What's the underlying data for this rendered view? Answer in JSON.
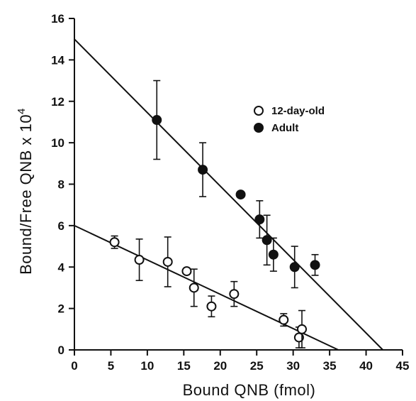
{
  "chart_data": {
    "type": "scatter",
    "xlabel": "Bound QNB (fmol)",
    "ylabel": "Bound/Free QNB x 10",
    "ylabel_superscript": "4",
    "xlim": [
      0,
      45
    ],
    "ylim": [
      0,
      16
    ],
    "x_ticks": [
      "0",
      "5",
      "10",
      "15",
      "20",
      "25",
      "30",
      "35",
      "40",
      "45"
    ],
    "y_ticks": [
      "0",
      "2",
      "4",
      "6",
      "8",
      "10",
      "12",
      "14",
      "16"
    ],
    "grid": false,
    "legend_position": "top-right",
    "series": [
      {
        "name": "12-day-old",
        "marker": "open-circle",
        "points": [
          {
            "x": 5.5,
            "y": 5.2,
            "err": 0.3
          },
          {
            "x": 8.9,
            "y": 4.35,
            "err": 1.0
          },
          {
            "x": 12.8,
            "y": 4.25,
            "err": 1.2
          },
          {
            "x": 15.4,
            "y": 3.8,
            "err": 0
          },
          {
            "x": 16.4,
            "y": 3.0,
            "err": 0.9
          },
          {
            "x": 18.8,
            "y": 2.1,
            "err": 0.5
          },
          {
            "x": 21.9,
            "y": 2.7,
            "err": 0.6
          },
          {
            "x": 28.7,
            "y": 1.45,
            "err": 0.3
          },
          {
            "x": 30.8,
            "y": 0.6,
            "err": 0.5
          },
          {
            "x": 31.2,
            "y": 1.0,
            "err": 0.9
          }
        ],
        "fit": {
          "x": [
            0,
            36.2
          ],
          "y": [
            6.0,
            0
          ]
        }
      },
      {
        "name": "Adult",
        "marker": "filled-circle",
        "points": [
          {
            "x": 11.3,
            "y": 11.1,
            "err": 1.9
          },
          {
            "x": 17.6,
            "y": 8.7,
            "err": 1.3
          },
          {
            "x": 22.8,
            "y": 7.5,
            "err": 0
          },
          {
            "x": 25.4,
            "y": 6.3,
            "err": 0.9
          },
          {
            "x": 26.4,
            "y": 5.3,
            "err": 1.2
          },
          {
            "x": 27.3,
            "y": 4.6,
            "err": 0.8
          },
          {
            "x": 30.2,
            "y": 4.0,
            "err": 1.0
          },
          {
            "x": 33.0,
            "y": 4.1,
            "err": 0.5
          }
        ],
        "fit": {
          "x": [
            0,
            42.3
          ],
          "y": [
            15.0,
            0
          ]
        }
      }
    ]
  }
}
